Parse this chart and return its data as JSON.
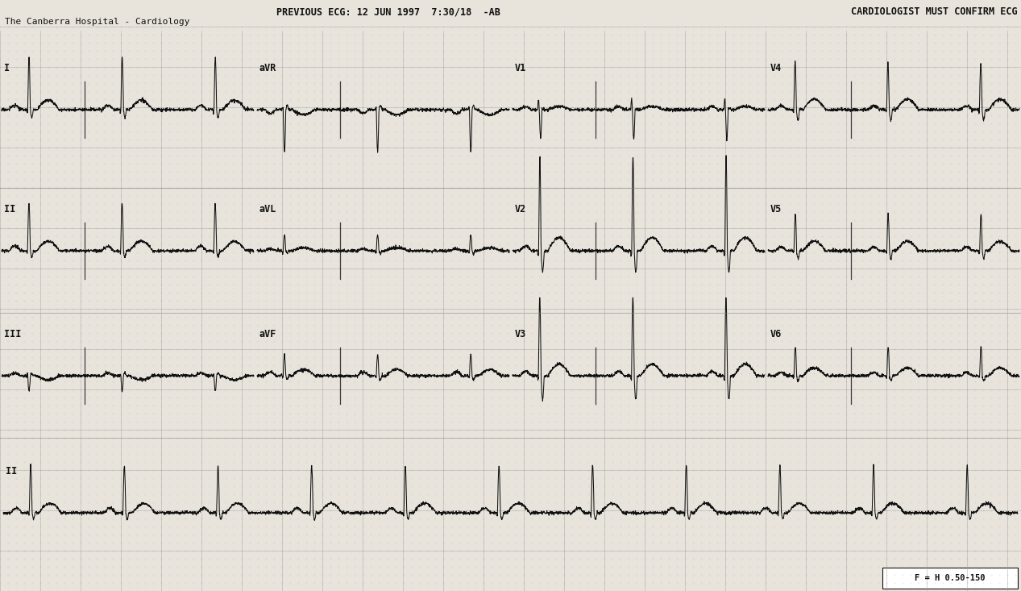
{
  "title_line1": "PREVIOUS ECG: 12 JUN 1997  7:30/18  -AB",
  "title_line2": "The Canberra Hospital - Cardiology",
  "title_right": "CARDIOLOGIST MUST CONFIRM ECG",
  "bottom_text": "F = H 0.50-150",
  "bg_color": "#e8e4dc",
  "grid_major_color": "#aaaaaa",
  "grid_minor_color": "#cccccc",
  "line_color": "#111111",
  "text_color": "#111111",
  "fig_width": 12.67,
  "fig_height": 7.33,
  "dpi": 100
}
